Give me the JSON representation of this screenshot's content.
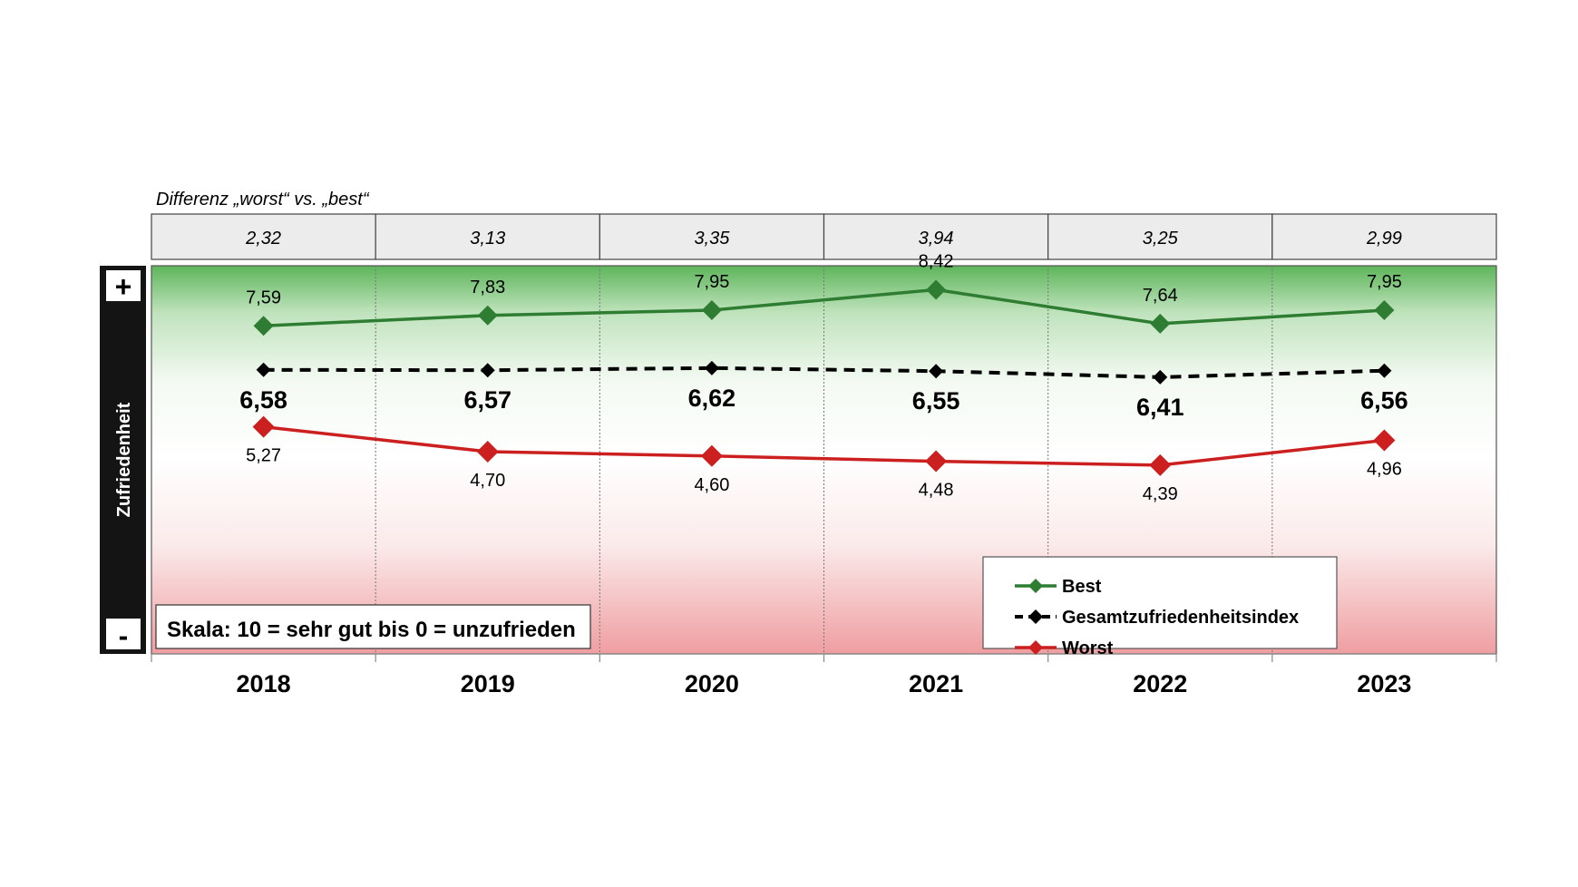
{
  "chart_data": {
    "type": "line",
    "categories": [
      "2018",
      "2019",
      "2020",
      "2021",
      "2022",
      "2023"
    ],
    "series": [
      {
        "name": "Best",
        "values": [
          7.59,
          7.83,
          7.95,
          8.42,
          7.64,
          7.95
        ],
        "labels": [
          "7,59",
          "7,83",
          "7,95",
          "8,42",
          "7,64",
          "7,95"
        ],
        "color": "#2e7d32",
        "style": "solid"
      },
      {
        "name": "Gesamtzufriedenheitsindex",
        "values": [
          6.58,
          6.57,
          6.62,
          6.55,
          6.41,
          6.56
        ],
        "labels": [
          "6,58",
          "6,57",
          "6,62",
          "6,55",
          "6,41",
          "6,56"
        ],
        "color": "#000000",
        "style": "dashed"
      },
      {
        "name": "Worst",
        "values": [
          5.27,
          4.7,
          4.6,
          4.48,
          4.39,
          4.96
        ],
        "labels": [
          "5,27",
          "4,70",
          "4,60",
          "4,48",
          "4,39",
          "4,96"
        ],
        "color": "#cc1f1f",
        "style": "solid"
      }
    ],
    "difference_caption": "Differenz „worst“ vs. „best“",
    "differences": [
      "2,32",
      "3,13",
      "3,35",
      "3,94",
      "3,25",
      "2,99"
    ],
    "ylabel": "Zufriedenheit",
    "y_top_marker": "+",
    "y_bottom_marker": "-",
    "scale_note": "Skala: 10 = sehr gut bis 0 = unzufrieden",
    "legend_position": "bottom-right",
    "grid": "vertical",
    "background": "gradient green (top) to red (bottom)"
  }
}
